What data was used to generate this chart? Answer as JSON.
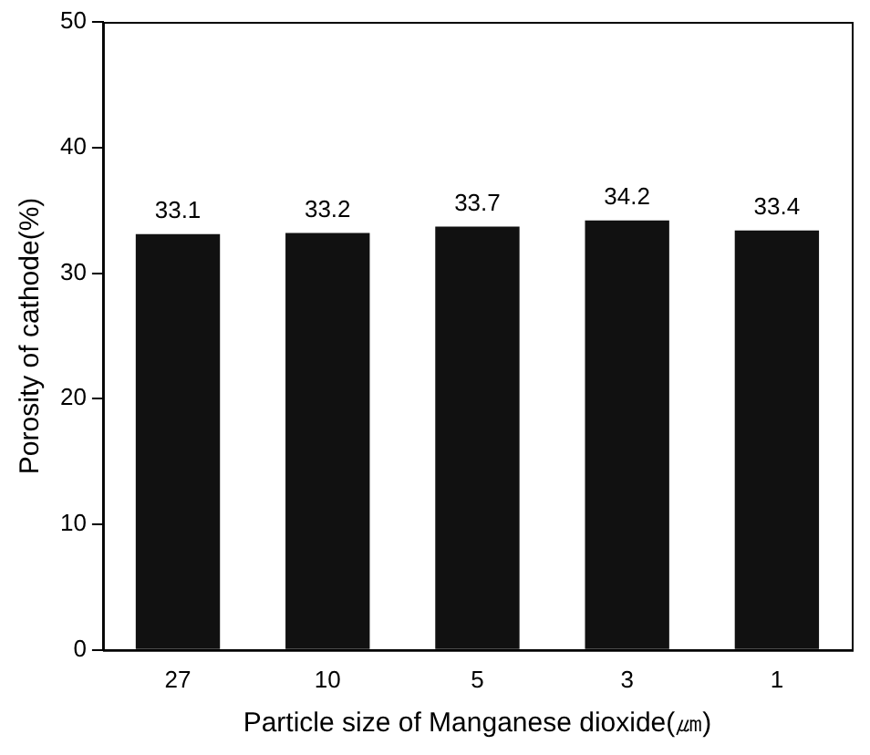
{
  "chart_data": {
    "type": "bar",
    "xlabel": "Particle size of Manganese dioxide(㎛)",
    "ylabel": "Porosity of cathode(%)",
    "categories": [
      "27",
      "10",
      "5",
      "3",
      "1"
    ],
    "values": [
      33.1,
      33.2,
      33.7,
      34.2,
      33.4
    ],
    "color": "#111111",
    "ylim": [
      0,
      50
    ],
    "yticks": [
      0,
      10,
      20,
      30,
      40,
      50
    ],
    "data_labels": true,
    "grid": false,
    "legend": false
  }
}
